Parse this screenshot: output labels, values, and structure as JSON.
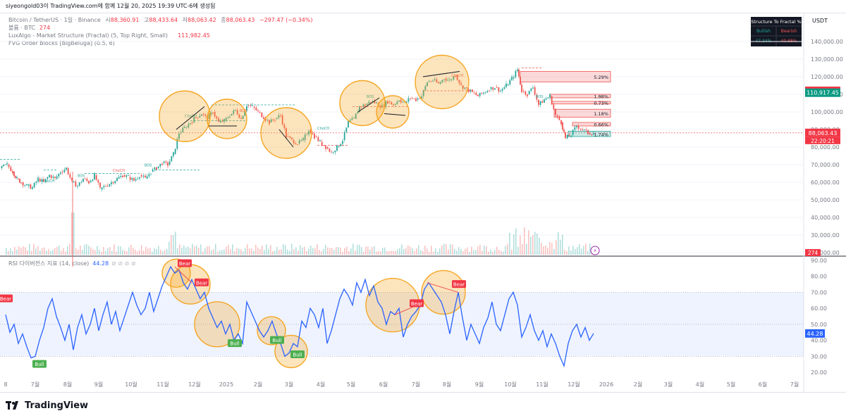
{
  "page_header": "siyeongold03이 TradingView.com에 함께 12월 20, 2025 19:39 UTC-6에 생성됨",
  "legend": {
    "symbol": "Bitcoin / TetherUS · 1일 · Binance",
    "o_label": "시",
    "o_val": "88,360.91",
    "h_label": "고",
    "h_val": "88,433.64",
    "l_label": "저",
    "l_val": "88,063.42",
    "c_label": "종",
    "c_val": "88,063.43",
    "change": "−297.47 (−0.34%)",
    "volume_label": "볼륨 · BTC",
    "volume_val": "274",
    "ind1_label": "LuxAlgo - Market Structure (Fractal) (5, Top Right, Small)",
    "ind1_val": "111,982.45",
    "ind2_label": "FVG Order Blocks [BigBeluga] (0.5, 6)"
  },
  "rsi_legend": {
    "label": "RSI 다이버전스 지표 (14, close)",
    "value": "44.28"
  },
  "fractal_table": {
    "title": "Structure To Fractal %",
    "bullish_label": "Bullish",
    "bearish_label": "Bearish",
    "bullish_pct": "47.34%",
    "bearish_pct": "40.68%"
  },
  "currency": "USDT",
  "colors": {
    "up": "#26a69a",
    "down": "#ef5350",
    "rsi": "#2962ff",
    "circle": "#f5a623"
  },
  "chart_data": {
    "type": "candlestick",
    "price_axis": {
      "ticks": [
        20000,
        30000,
        40000,
        50000,
        60000,
        70000,
        80000,
        90000,
        100000,
        110000,
        120000,
        130000,
        140000
      ],
      "tick_labels": [
        "20,000.00",
        "30,000.00",
        "40,000.00",
        "50,000.00",
        "60,000.00",
        "70,000.00",
        "80,000.00",
        "90,000.00",
        "100,000.00",
        "110,000.00",
        "120,000.00",
        "130,000.00",
        "140,000.00"
      ]
    },
    "price_badges": [
      {
        "label": "111,982.45",
        "value": 111982.45,
        "color": "#f23645"
      },
      {
        "label": "110,917.45",
        "value": 110917.45,
        "color": "#089981"
      },
      {
        "label": "88,063.43",
        "value": 88063.43,
        "color": "#f23645"
      }
    ],
    "countdown": "22:20:21",
    "volume_badge": "274",
    "time_axis": [
      "8",
      "7월",
      "8월",
      "9월",
      "10월",
      "11월",
      "12월",
      "2025",
      "2월",
      "3월",
      "4월",
      "5월",
      "6월",
      "7월",
      "8월",
      "9월",
      "10월",
      "11월",
      "12월",
      "2026",
      "2월",
      "3월",
      "4월",
      "5월",
      "6월",
      "7월"
    ],
    "price_path": [
      [
        0,
        68000
      ],
      [
        10,
        70000
      ],
      [
        18,
        66000
      ],
      [
        24,
        62000
      ],
      [
        30,
        60000
      ],
      [
        38,
        58000
      ],
      [
        46,
        57000
      ],
      [
        54,
        62000
      ],
      [
        62,
        60000
      ],
      [
        70,
        64000
      ],
      [
        78,
        62000
      ],
      [
        86,
        66000
      ],
      [
        94,
        68000
      ],
      [
        102,
        60000
      ],
      [
        110,
        58000
      ],
      [
        118,
        62000
      ],
      [
        126,
        60000
      ],
      [
        134,
        64000
      ],
      [
        142,
        56000
      ],
      [
        150,
        58000
      ],
      [
        158,
        60000
      ],
      [
        166,
        62000
      ],
      [
        174,
        64000
      ],
      [
        182,
        63000
      ],
      [
        190,
        61000
      ],
      [
        198,
        64000
      ],
      [
        206,
        62000
      ],
      [
        214,
        66000
      ],
      [
        222,
        68000
      ],
      [
        230,
        71000
      ],
      [
        238,
        70000
      ],
      [
        246,
        76000
      ],
      [
        254,
        88000
      ],
      [
        262,
        91000
      ],
      [
        270,
        94000
      ],
      [
        278,
        97000
      ],
      [
        286,
        99000
      ],
      [
        294,
        96000
      ],
      [
        302,
        100000
      ],
      [
        310,
        94000
      ],
      [
        318,
        95000
      ],
      [
        326,
        98000
      ],
      [
        334,
        101000
      ],
      [
        342,
        96000
      ],
      [
        350,
        104000
      ],
      [
        358,
        103000
      ],
      [
        366,
        100000
      ],
      [
        374,
        97000
      ],
      [
        382,
        94000
      ],
      [
        390,
        96000
      ],
      [
        398,
        98000
      ],
      [
        406,
        86000
      ],
      [
        414,
        84000
      ],
      [
        422,
        82000
      ],
      [
        430,
        84000
      ],
      [
        438,
        90000
      ],
      [
        446,
        86000
      ],
      [
        454,
        83000
      ],
      [
        462,
        80000
      ],
      [
        470,
        77000
      ],
      [
        478,
        80000
      ],
      [
        486,
        84000
      ],
      [
        494,
        94000
      ],
      [
        502,
        96000
      ],
      [
        510,
        103000
      ],
      [
        518,
        104000
      ],
      [
        526,
        106000
      ],
      [
        534,
        105000
      ],
      [
        542,
        103000
      ],
      [
        550,
        106000
      ],
      [
        558,
        104000
      ],
      [
        566,
        107000
      ],
      [
        574,
        105000
      ],
      [
        582,
        108000
      ],
      [
        590,
        107000
      ],
      [
        598,
        109000
      ],
      [
        606,
        117000
      ],
      [
        614,
        118000
      ],
      [
        622,
        116000
      ],
      [
        630,
        119000
      ],
      [
        638,
        118000
      ],
      [
        646,
        121000
      ],
      [
        654,
        115000
      ],
      [
        662,
        113000
      ],
      [
        670,
        111000
      ],
      [
        678,
        109000
      ],
      [
        686,
        111000
      ],
      [
        694,
        113000
      ],
      [
        702,
        114000
      ],
      [
        710,
        112000
      ],
      [
        718,
        115000
      ],
      [
        726,
        119000
      ],
      [
        734,
        124000
      ],
      [
        740,
        112000
      ],
      [
        748,
        110000
      ],
      [
        756,
        114000
      ],
      [
        764,
        104000
      ],
      [
        772,
        107000
      ],
      [
        780,
        109000
      ],
      [
        788,
        98000
      ],
      [
        796,
        94000
      ],
      [
        802,
        85000
      ],
      [
        810,
        87000
      ],
      [
        818,
        92000
      ],
      [
        826,
        90000
      ],
      [
        834,
        88000
      ],
      [
        842,
        88063
      ]
    ],
    "rsi": {
      "levels": {
        "upper": 70,
        "mid": 50,
        "lower": 30
      },
      "ticks": [
        20,
        30,
        40,
        50,
        60,
        70,
        80,
        90
      ],
      "tick_labels": [
        "20.00",
        "30.00",
        "40.00",
        "50.00",
        "60.00",
        "70.00",
        "80.00",
        "90.00"
      ],
      "value_badge": "44.28",
      "path": [
        [
          8,
          56
        ],
        [
          14,
          45
        ],
        [
          20,
          50
        ],
        [
          26,
          38
        ],
        [
          32,
          44
        ],
        [
          38,
          36
        ],
        [
          44,
          29
        ],
        [
          50,
          30
        ],
        [
          56,
          40
        ],
        [
          62,
          48
        ],
        [
          68,
          60
        ],
        [
          74,
          66
        ],
        [
          80,
          55
        ],
        [
          86,
          48
        ],
        [
          92,
          40
        ],
        [
          98,
          50
        ],
        [
          104,
          34
        ],
        [
          110,
          48
        ],
        [
          116,
          56
        ],
        [
          122,
          44
        ],
        [
          128,
          50
        ],
        [
          134,
          60
        ],
        [
          140,
          46
        ],
        [
          146,
          56
        ],
        [
          152,
          64
        ],
        [
          158,
          50
        ],
        [
          164,
          58
        ],
        [
          170,
          46
        ],
        [
          176,
          54
        ],
        [
          182,
          62
        ],
        [
          188,
          70
        ],
        [
          194,
          62
        ],
        [
          200,
          56
        ],
        [
          206,
          60
        ],
        [
          212,
          70
        ],
        [
          218,
          58
        ],
        [
          224,
          66
        ],
        [
          230,
          74
        ],
        [
          236,
          80
        ],
        [
          242,
          86
        ],
        [
          248,
          82
        ],
        [
          254,
          84
        ],
        [
          260,
          76
        ],
        [
          266,
          72
        ],
        [
          272,
          78
        ],
        [
          278,
          72
        ],
        [
          284,
          66
        ],
        [
          290,
          70
        ],
        [
          296,
          60
        ],
        [
          302,
          54
        ],
        [
          308,
          48
        ],
        [
          314,
          52
        ],
        [
          320,
          44
        ],
        [
          326,
          50
        ],
        [
          332,
          40
        ],
        [
          338,
          44
        ],
        [
          344,
          38
        ],
        [
          350,
          64
        ],
        [
          356,
          58
        ],
        [
          362,
          52
        ],
        [
          368,
          46
        ],
        [
          374,
          42
        ],
        [
          380,
          46
        ],
        [
          386,
          52
        ],
        [
          392,
          44
        ],
        [
          398,
          38
        ],
        [
          404,
          30
        ],
        [
          410,
          32
        ],
        [
          416,
          38
        ],
        [
          422,
          36
        ],
        [
          428,
          52
        ],
        [
          434,
          48
        ],
        [
          440,
          60
        ],
        [
          446,
          56
        ],
        [
          452,
          48
        ],
        [
          458,
          60
        ],
        [
          464,
          38
        ],
        [
          470,
          46
        ],
        [
          476,
          56
        ],
        [
          482,
          66
        ],
        [
          488,
          72
        ],
        [
          494,
          68
        ],
        [
          500,
          62
        ],
        [
          506,
          76
        ],
        [
          512,
          70
        ],
        [
          518,
          78
        ],
        [
          524,
          68
        ],
        [
          530,
          74
        ],
        [
          536,
          64
        ],
        [
          542,
          60
        ],
        [
          548,
          50
        ],
        [
          554,
          58
        ],
        [
          560,
          56
        ],
        [
          566,
          60
        ],
        [
          572,
          42
        ],
        [
          578,
          50
        ],
        [
          584,
          55
        ],
        [
          590,
          58
        ],
        [
          596,
          62
        ],
        [
          602,
          72
        ],
        [
          608,
          76
        ],
        [
          614,
          72
        ],
        [
          620,
          68
        ],
        [
          626,
          64
        ],
        [
          632,
          56
        ],
        [
          638,
          44
        ],
        [
          644,
          58
        ],
        [
          650,
          70
        ],
        [
          656,
          54
        ],
        [
          662,
          40
        ],
        [
          668,
          50
        ],
        [
          674,
          44
        ],
        [
          680,
          38
        ],
        [
          686,
          48
        ],
        [
          692,
          54
        ],
        [
          698,
          64
        ],
        [
          704,
          50
        ],
        [
          710,
          46
        ],
        [
          716,
          56
        ],
        [
          722,
          66
        ],
        [
          728,
          70
        ],
        [
          734,
          62
        ],
        [
          740,
          42
        ],
        [
          746,
          48
        ],
        [
          752,
          56
        ],
        [
          758,
          46
        ],
        [
          764,
          40
        ],
        [
          770,
          46
        ],
        [
          776,
          36
        ],
        [
          782,
          44
        ],
        [
          788,
          38
        ],
        [
          794,
          30
        ],
        [
          800,
          24
        ],
        [
          806,
          38
        ],
        [
          812,
          46
        ],
        [
          818,
          50
        ],
        [
          824,
          42
        ],
        [
          830,
          48
        ],
        [
          836,
          40
        ],
        [
          842,
          44.28
        ]
      ],
      "signals": [
        {
          "text": "Bear",
          "x": 8,
          "rsi": 66,
          "kind": "bear"
        },
        {
          "text": "Bull",
          "x": 56,
          "rsi": 25,
          "kind": "bull"
        },
        {
          "text": "Bear",
          "x": 262,
          "rsi": 88,
          "kind": "bear"
        },
        {
          "text": "Bear",
          "x": 286,
          "rsi": 76,
          "kind": "bear"
        },
        {
          "text": "Bull",
          "x": 333,
          "rsi": 38,
          "kind": "bull"
        },
        {
          "text": "Bull",
          "x": 393,
          "rsi": 40,
          "kind": "bull"
        },
        {
          "text": "Bull",
          "x": 422,
          "rsi": 31,
          "kind": "bull"
        },
        {
          "text": "Bear",
          "x": 591,
          "rsi": 63,
          "kind": "bear"
        },
        {
          "text": "Bear",
          "x": 651,
          "rsi": 75,
          "kind": "bear"
        }
      ]
    },
    "structure_labels": [
      "ChoCH",
      "BOS",
      "ChoCH",
      "BOS",
      "ChoCH",
      "BOS",
      "ChoCH",
      "BOS",
      "ChoCH",
      "BOS"
    ],
    "fvg_blocks": [
      {
        "label": "5.29%",
        "top": 123000,
        "bottom": 117000
      },
      {
        "label": "1.98%",
        "top": 110000,
        "bottom": 108000
      },
      {
        "label": "0.73%",
        "top": 106000,
        "bottom": 104500
      },
      {
        "label": "1.18%",
        "top": 101500,
        "bottom": 97000
      },
      {
        "label": "0.66%",
        "top": 94000,
        "bottom": 92000
      },
      {
        "label": "1.74%",
        "top": 89000,
        "bottom": 86000
      }
    ]
  }
}
